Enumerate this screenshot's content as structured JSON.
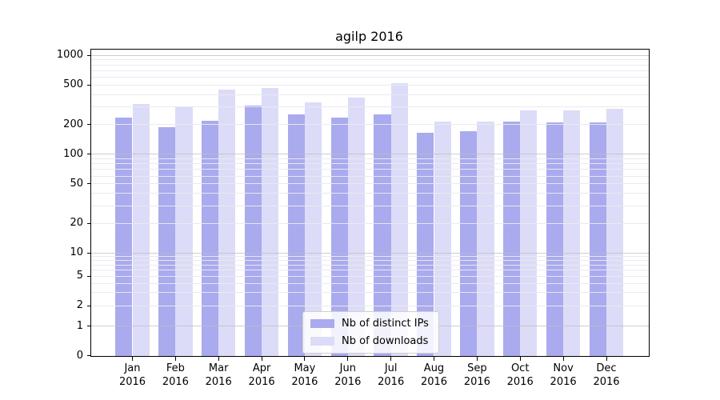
{
  "title": "agilp 2016",
  "colors": {
    "distinct_ips": "#aaaaee",
    "downloads": "#dcdcf8",
    "grid_major": "#bdbdbd",
    "grid_minor": "#e9e9f0",
    "axis": "#000000"
  },
  "legend": {
    "items": [
      {
        "label": "Nb of distinct IPs",
        "color_key": "distinct_ips"
      },
      {
        "label": "Nb of downloads",
        "color_key": "downloads"
      }
    ]
  },
  "y_axis": {
    "ticks": [
      {
        "label": "1000",
        "value": 1000
      },
      {
        "label": "500",
        "value": 500
      },
      {
        "label": "200",
        "value": 200
      },
      {
        "label": "100",
        "value": 100
      },
      {
        "label": "50",
        "value": 50
      },
      {
        "label": "20",
        "value": 20
      },
      {
        "label": "10",
        "value": 10
      },
      {
        "label": "5",
        "value": 5
      },
      {
        "label": "2",
        "value": 2
      },
      {
        "label": "1",
        "value": 1
      },
      {
        "label": "0",
        "value": 0
      }
    ],
    "major_gridlines": [
      1000,
      100,
      10,
      1
    ],
    "minor_gridlines": [
      900,
      800,
      700,
      600,
      500,
      400,
      300,
      200,
      90,
      80,
      70,
      60,
      50,
      40,
      30,
      20,
      9,
      8,
      7,
      6,
      5,
      4,
      3,
      2
    ]
  },
  "x_axis": {
    "categories": [
      {
        "month": "Jan",
        "year": "2016"
      },
      {
        "month": "Feb",
        "year": "2016"
      },
      {
        "month": "Mar",
        "year": "2016"
      },
      {
        "month": "Apr",
        "year": "2016"
      },
      {
        "month": "May",
        "year": "2016"
      },
      {
        "month": "Jun",
        "year": "2016"
      },
      {
        "month": "Jul",
        "year": "2016"
      },
      {
        "month": "Aug",
        "year": "2016"
      },
      {
        "month": "Sep",
        "year": "2016"
      },
      {
        "month": "Oct",
        "year": "2016"
      },
      {
        "month": "Nov",
        "year": "2016"
      },
      {
        "month": "Dec",
        "year": "2016"
      }
    ]
  },
  "chart_data": {
    "type": "bar",
    "title": "agilp 2016",
    "categories": [
      "Jan 2016",
      "Feb 2016",
      "Mar 2016",
      "Apr 2016",
      "May 2016",
      "Jun 2016",
      "Jul 2016",
      "Aug 2016",
      "Sep 2016",
      "Oct 2016",
      "Nov 2016",
      "Dec 2016"
    ],
    "series": [
      {
        "name": "Nb of distinct IPs",
        "color_key": "distinct_ips",
        "values": [
          237,
          186,
          218,
          310,
          254,
          236,
          251,
          165,
          170,
          214,
          211,
          211
        ]
      },
      {
        "name": "Nb of downloads",
        "color_key": "downloads",
        "values": [
          325,
          303,
          452,
          472,
          333,
          372,
          520,
          214,
          214,
          276,
          276,
          288
        ]
      }
    ],
    "xlabel": "",
    "ylabel": "",
    "ylim": [
      0,
      1000
    ],
    "yscale": "log (with 0 baseline)",
    "grid": "horizontal, major and minor",
    "legend_position": "lower center"
  }
}
